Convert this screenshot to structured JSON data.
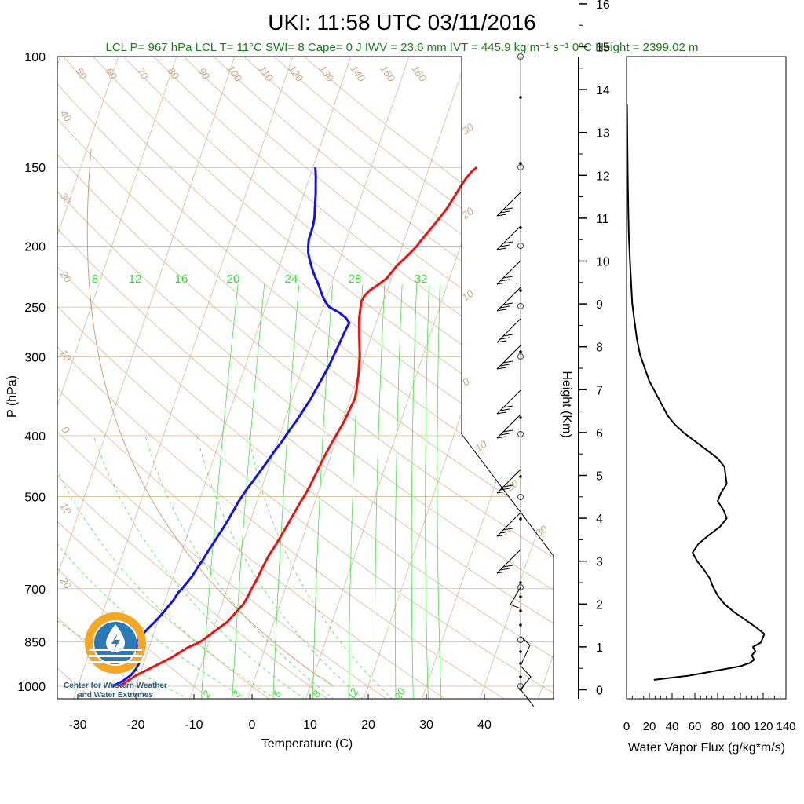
{
  "colors": {
    "temperature": "#ee1111",
    "dewpoint": "#1111ee",
    "flux": "#000000",
    "dry_adiabat": "#d8b896",
    "isotherm": "#d8b896",
    "isobar": "#d8b896",
    "mixing_ratio": "#33dd33",
    "subtitle": "#1a7a1a",
    "logo_orange": "#f5a623",
    "logo_blue": "#2a7ab8"
  },
  "chart_data": [
    {
      "type": "line",
      "title": "UKI: 11:58 UTC 03/11/2016",
      "subtitle": "LCL P= 967 hPa  LCL T= 11°C  SWI= 8  Cape= 0 J  IWV = 23.6 mm  IVT = 445.9 kg m⁻¹ s⁻¹  0°C Height = 2399.02 m",
      "xlabel": "Temperature (C)",
      "ylabel": "P (hPa)",
      "x_ticks": [
        -30,
        -20,
        -10,
        0,
        10,
        20,
        30,
        40
      ],
      "y_ticks": [
        100,
        150,
        200,
        250,
        300,
        400,
        500,
        700,
        850,
        1000
      ],
      "y_scale": "log",
      "dry_adiabat_labels": [
        "50",
        "60",
        "70",
        "80",
        "90",
        "100",
        "110",
        "120",
        "130",
        "140",
        "150",
        "160"
      ],
      "left_edge_labels": [
        "40",
        "30",
        "20",
        "10",
        "0",
        "10",
        "20"
      ],
      "right_edge_labels": [
        "30",
        "20",
        "10",
        "0",
        "10",
        "20",
        "30"
      ],
      "mixing_ratio_labels_top": [
        "8",
        "12",
        "16",
        "20",
        "24",
        "28",
        "32"
      ],
      "mixing_ratio_labels_bottom": [
        "2",
        "3",
        "5",
        "8",
        "12",
        "20"
      ],
      "series": [
        {
          "name": "Temperature",
          "points": [
            [
              -22.8,
              1000
            ],
            [
              -20.5,
              960
            ],
            [
              -18.0,
              930
            ],
            [
              -15.5,
              900
            ],
            [
              -13.5,
              870
            ],
            [
              -11.5,
              850
            ],
            [
              -9.8,
              820
            ],
            [
              -8.0,
              790
            ],
            [
              -7.0,
              760
            ],
            [
              -6.3,
              740
            ],
            [
              -6.0,
              720
            ],
            [
              -5.8,
              700
            ],
            [
              -5.5,
              680
            ],
            [
              -5.2,
              650
            ],
            [
              -4.8,
              620
            ],
            [
              -4.3,
              600
            ],
            [
              -3.8,
              575
            ],
            [
              -3.3,
              550
            ],
            [
              -2.9,
              530
            ],
            [
              -2.5,
              510
            ],
            [
              -2.2,
              500
            ],
            [
              -1.8,
              480
            ],
            [
              -1.5,
              460
            ],
            [
              -1.2,
              440
            ],
            [
              -0.8,
              420
            ],
            [
              -0.3,
              400
            ],
            [
              0.3,
              380
            ],
            [
              0.6,
              360
            ],
            [
              0.8,
              350
            ],
            [
              0.6,
              340
            ],
            [
              0.3,
              330
            ],
            [
              0.0,
              320
            ],
            [
              -0.4,
              310
            ],
            [
              -0.8,
              300
            ],
            [
              -1.4,
              290
            ],
            [
              -2.0,
              280
            ],
            [
              -2.6,
              270
            ],
            [
              -3.2,
              260
            ],
            [
              -3.6,
              250
            ],
            [
              -3.8,
              245
            ],
            [
              -3.6,
              240
            ],
            [
              -3.0,
              235
            ],
            [
              -1.8,
              230
            ],
            [
              -0.8,
              225
            ],
            [
              -0.3,
              220
            ],
            [
              0.2,
              215
            ],
            [
              1.0,
              210
            ],
            [
              1.8,
              205
            ],
            [
              2.5,
              200
            ],
            [
              3.0,
              195
            ],
            [
              3.6,
              190
            ],
            [
              4.2,
              185
            ],
            [
              4.8,
              180
            ],
            [
              5.4,
              175
            ],
            [
              5.8,
              170
            ],
            [
              6.2,
              165
            ],
            [
              6.6,
              160
            ],
            [
              7.0,
              156
            ],
            [
              7.6,
              152
            ],
            [
              8.2,
              150
            ]
          ]
        },
        {
          "name": "Dewpoint",
          "points": [
            [
              -24.0,
              1000
            ],
            [
              -22.5,
              980
            ],
            [
              -21.5,
              960
            ],
            [
              -21.0,
              940
            ],
            [
              -20.8,
              920
            ],
            [
              -21.5,
              900
            ],
            [
              -22.0,
              870
            ],
            [
              -22.5,
              850
            ],
            [
              -22.0,
              830
            ],
            [
              -21.3,
              810
            ],
            [
              -20.5,
              790
            ],
            [
              -19.8,
              770
            ],
            [
              -19.2,
              750
            ],
            [
              -18.6,
              730
            ],
            [
              -18.2,
              710
            ],
            [
              -17.8,
              700
            ],
            [
              -17.3,
              685
            ],
            [
              -16.8,
              670
            ],
            [
              -16.4,
              650
            ],
            [
              -15.9,
              630
            ],
            [
              -15.5,
              610
            ],
            [
              -15.0,
              590
            ],
            [
              -14.5,
              570
            ],
            [
              -14.0,
              550
            ],
            [
              -13.6,
              530
            ],
            [
              -13.2,
              510
            ],
            [
              -12.9,
              500
            ],
            [
              -12.6,
              490
            ],
            [
              -12.2,
              480
            ],
            [
              -11.8,
              470
            ],
            [
              -11.4,
              460
            ],
            [
              -11.0,
              450
            ],
            [
              -10.6,
              440
            ],
            [
              -10.2,
              430
            ],
            [
              -9.8,
              420
            ],
            [
              -9.3,
              410
            ],
            [
              -8.9,
              400
            ],
            [
              -8.5,
              390
            ],
            [
              -8.0,
              380
            ],
            [
              -7.6,
              370
            ],
            [
              -7.2,
              360
            ],
            [
              -6.8,
              350
            ],
            [
              -6.5,
              340
            ],
            [
              -6.2,
              330
            ],
            [
              -5.9,
              320
            ],
            [
              -5.6,
              310
            ],
            [
              -5.4,
              300
            ],
            [
              -5.2,
              290
            ],
            [
              -5.0,
              280
            ],
            [
              -4.8,
              270
            ],
            [
              -4.6,
              265
            ],
            [
              -5.5,
              260
            ],
            [
              -7.0,
              255
            ],
            [
              -9.0,
              250
            ],
            [
              -10.0,
              245
            ],
            [
              -10.8,
              240
            ],
            [
              -11.5,
              235
            ],
            [
              -12.2,
              230
            ],
            [
              -13.0,
              225
            ],
            [
              -13.8,
              220
            ],
            [
              -14.5,
              215
            ],
            [
              -15.2,
              210
            ],
            [
              -15.8,
              205
            ],
            [
              -16.2,
              200
            ],
            [
              -16.5,
              195
            ],
            [
              -16.5,
              190
            ],
            [
              -16.6,
              185
            ],
            [
              -16.8,
              180
            ],
            [
              -17.2,
              175
            ],
            [
              -17.6,
              170
            ],
            [
              -18.0,
              165
            ],
            [
              -18.5,
              160
            ],
            [
              -19.0,
              155
            ],
            [
              -19.6,
              150
            ]
          ]
        }
      ]
    },
    {
      "type": "line",
      "xlabel": "Water Vapor Flux (g/kg*m/s)",
      "ylabel": "Height (Km)",
      "x_ticks": [
        0,
        20,
        40,
        60,
        80,
        100,
        120,
        140
      ],
      "y_ticks": [
        0,
        1,
        2,
        3,
        4,
        5,
        6,
        7,
        8,
        9,
        10,
        11,
        12,
        13,
        14,
        15,
        16
      ],
      "xlim": [
        0,
        140
      ],
      "ylim": [
        -0.2,
        16.3
      ],
      "series": [
        {
          "name": "Water Vapor Flux",
          "points": [
            [
              24,
              0.23
            ],
            [
              55,
              0.33
            ],
            [
              80,
              0.45
            ],
            [
              100,
              0.55
            ],
            [
              108,
              0.62
            ],
            [
              112,
              0.7
            ],
            [
              110,
              0.8
            ],
            [
              113,
              0.9
            ],
            [
              111,
              1.0
            ],
            [
              118,
              1.1
            ],
            [
              121,
              1.3
            ],
            [
              114,
              1.45
            ],
            [
              106,
              1.6
            ],
            [
              95,
              1.8
            ],
            [
              86,
              2.0
            ],
            [
              80,
              2.2
            ],
            [
              76,
              2.4
            ],
            [
              73,
              2.6
            ],
            [
              68,
              2.8
            ],
            [
              62,
              3.0
            ],
            [
              58,
              3.2
            ],
            [
              63,
              3.4
            ],
            [
              72,
              3.6
            ],
            [
              82,
              3.8
            ],
            [
              88,
              4.0
            ],
            [
              85,
              4.2
            ],
            [
              80,
              4.4
            ],
            [
              83,
              4.6
            ],
            [
              88,
              4.8
            ],
            [
              87,
              5.0
            ],
            [
              86,
              5.2
            ],
            [
              80,
              5.4
            ],
            [
              70,
              5.6
            ],
            [
              60,
              5.8
            ],
            [
              50,
              6.0
            ],
            [
              42,
              6.2
            ],
            [
              36,
              6.4
            ],
            [
              32,
              6.6
            ],
            [
              28,
              6.8
            ],
            [
              24,
              7.0
            ],
            [
              20,
              7.2
            ],
            [
              16,
              7.5
            ],
            [
              12,
              7.8
            ],
            [
              9,
              8.2
            ],
            [
              7,
              8.6
            ],
            [
              5,
              9.0
            ],
            [
              4,
              9.5
            ],
            [
              3,
              10.0
            ],
            [
              2,
              10.6
            ],
            [
              1.5,
              11.2
            ],
            [
              1,
              12
            ],
            [
              0.6,
              13
            ],
            [
              0.4,
              13.65
            ]
          ]
        }
      ]
    }
  ],
  "logo": {
    "name_line1": "Center for Western Weather",
    "name_line2": "and Water Extremes"
  }
}
